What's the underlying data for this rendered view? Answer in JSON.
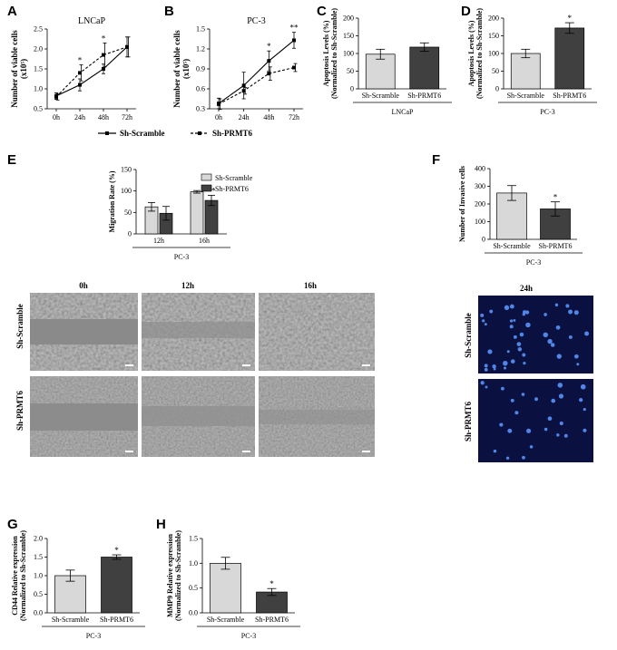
{
  "panels": {
    "A": "A",
    "B": "B",
    "C": "C",
    "D": "D",
    "E": "E",
    "F": "F",
    "G": "G",
    "H": "H"
  },
  "colors": {
    "scramble_bar": "#d8d8d8",
    "prmt6_bar": "#404040",
    "micro_bg": "#9a9a9a",
    "invasion_bg": "#0a1040",
    "invasion_cell": "#4f86e8"
  },
  "legend_growth": {
    "scramble": "Sh-Scramble",
    "prmt6": "Sh-PRMT6"
  },
  "chart_data": [
    {
      "id": "A",
      "type": "line",
      "title": "LNCaP",
      "ylabel_main": "Number of viable cells",
      "ylabel_unit": "(x10⁵)",
      "categories": [
        "0h",
        "24h",
        "48h",
        "72h"
      ],
      "yticks": [
        "0.5",
        "1.0",
        "1.5",
        "2.0",
        "2.5"
      ],
      "ylim": [
        0.5,
        2.5
      ],
      "series": [
        {
          "name": "Sh-Scramble",
          "values": [
            0.82,
            1.1,
            1.5,
            2.05
          ],
          "err": [
            0.08,
            0.15,
            0.12,
            0.25
          ],
          "style": "solid"
        },
        {
          "name": "Sh-PRMT6",
          "values": [
            0.8,
            1.4,
            1.85,
            2.05
          ],
          "err": [
            0.08,
            0.2,
            0.3,
            0.25
          ],
          "style": "dashed"
        }
      ],
      "sig": [
        "",
        "*",
        "*",
        ""
      ]
    },
    {
      "id": "B",
      "type": "line",
      "title": "PC-3",
      "ylabel_main": "Number of viable cells",
      "ylabel_unit": "(x10⁵)",
      "categories": [
        "0h",
        "24h",
        "48h",
        "72h"
      ],
      "yticks": [
        "0.3",
        "0.6",
        "0.9",
        "1.2",
        "1.5"
      ],
      "ylim": [
        0.3,
        1.5
      ],
      "series": [
        {
          "name": "Sh-Scramble",
          "values": [
            0.38,
            0.65,
            1.02,
            1.33
          ],
          "err": [
            0.08,
            0.2,
            0.15,
            0.12
          ],
          "style": "solid"
        },
        {
          "name": "Sh-PRMT6",
          "values": [
            0.37,
            0.57,
            0.83,
            0.92
          ],
          "err": [
            0.08,
            0.05,
            0.1,
            0.06
          ],
          "style": "dashed"
        }
      ],
      "sig": [
        "",
        "",
        "*",
        "**"
      ]
    },
    {
      "id": "C",
      "type": "bar",
      "ylabel_main": "Apoptosis Levels (%)",
      "ylabel_sub": "(Normalized to Sh-Scramble)",
      "categories": [
        "Sh-Scramble",
        "Sh-PRMT6"
      ],
      "values": [
        98,
        118
      ],
      "err": [
        14,
        12
      ],
      "yticks": [
        "0",
        "50",
        "100",
        "150",
        "200"
      ],
      "ylim": [
        0,
        200
      ],
      "group": "LNCaP",
      "sig": [
        "",
        ""
      ]
    },
    {
      "id": "D",
      "type": "bar",
      "ylabel_main": "Apoptosis Levels (%)",
      "ylabel_sub": "(Normalized to Sh-Scramble)",
      "categories": [
        "Sh-Scramble",
        "Sh-PRMT6"
      ],
      "values": [
        100,
        172
      ],
      "err": [
        12,
        15
      ],
      "yticks": [
        "0",
        "50",
        "100",
        "150",
        "200"
      ],
      "ylim": [
        0,
        200
      ],
      "group": "PC-3",
      "sig": [
        "",
        "*"
      ]
    },
    {
      "id": "E",
      "type": "bar",
      "ylabel_main": "Migration Rate (%)",
      "categories": [
        "12h",
        "16h"
      ],
      "series": [
        {
          "name": "Sh-Scramble",
          "values": [
            63,
            98
          ],
          "err": [
            10,
            3
          ]
        },
        {
          "name": "Sh-PRMT6",
          "values": [
            48,
            78
          ],
          "err": [
            16,
            12
          ]
        }
      ],
      "yticks": [
        "0",
        "50",
        "100",
        "150"
      ],
      "ylim": [
        0,
        150
      ],
      "group": "PC-3",
      "sig": [
        "",
        "**"
      ]
    },
    {
      "id": "F",
      "type": "bar",
      "ylabel_main": "Number of Invasive cells",
      "categories": [
        "Sh-Scramble",
        "Sh-PRMT6"
      ],
      "values": [
        262,
        172
      ],
      "err": [
        42,
        40
      ],
      "yticks": [
        "0",
        "100",
        "200",
        "300",
        "400"
      ],
      "ylim": [
        0,
        400
      ],
      "group": "PC-3",
      "sig": [
        "",
        "*"
      ]
    },
    {
      "id": "G",
      "type": "bar",
      "ylabel_main": "CD44 Relative expression",
      "ylabel_sub": "(Normalized to Sh-Scramble)",
      "categories": [
        "Sh-Scramble",
        "Sh-PRMT6"
      ],
      "values": [
        1.0,
        1.5
      ],
      "err": [
        0.15,
        0.06
      ],
      "yticks": [
        "0.0",
        "0.5",
        "1.0",
        "1.5",
        "2.0"
      ],
      "ylim": [
        0,
        2
      ],
      "group": "PC-3",
      "sig": [
        "",
        "*"
      ]
    },
    {
      "id": "H",
      "type": "bar",
      "ylabel_main": "MMP9 Relative expression",
      "ylabel_sub": "(Normalized to Sh-Scramble)",
      "categories": [
        "Sh-Scramble",
        "Sh-PRMT6"
      ],
      "values": [
        1.0,
        0.42
      ],
      "err": [
        0.12,
        0.07
      ],
      "yticks": [
        "0.0",
        "0.5",
        "1.0",
        "1.5"
      ],
      "ylim": [
        0,
        1.5
      ],
      "group": "PC-3",
      "sig": [
        "",
        "*"
      ]
    }
  ],
  "micrographs": {
    "columns": [
      "0h",
      "12h",
      "16h"
    ],
    "rows": [
      "Sh-Scramble",
      "Sh-PRMT6"
    ]
  },
  "invasion": {
    "title": "24h",
    "rows": [
      "Sh-Scramble",
      "Sh-PRMT6"
    ]
  }
}
